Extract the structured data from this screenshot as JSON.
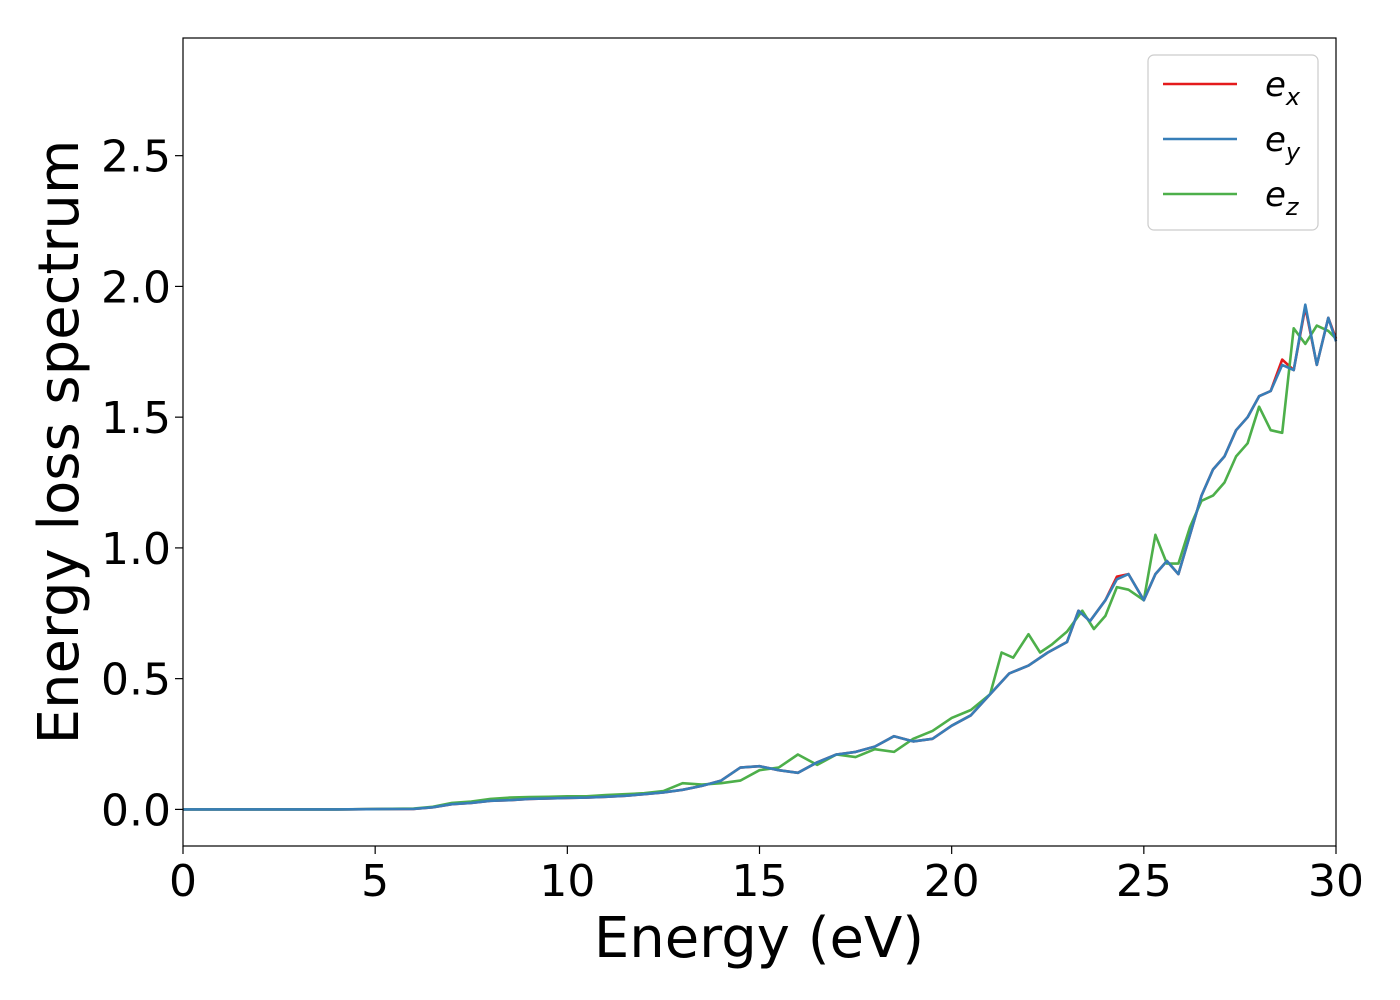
{
  "chart_data": {
    "type": "line",
    "xlabel": "Energy (eV)",
    "ylabel": "Energy loss spectrum",
    "xlim": [
      0,
      30
    ],
    "ylim": [
      -0.14,
      2.95
    ],
    "xticks": [
      0,
      5,
      10,
      15,
      20,
      25,
      30
    ],
    "xtick_labels": [
      "0",
      "5",
      "10",
      "15",
      "20",
      "25",
      "30"
    ],
    "yticks": [
      0.0,
      0.5,
      1.0,
      1.5,
      2.0,
      2.5
    ],
    "ytick_labels": [
      "0.0",
      "0.5",
      "1.0",
      "1.5",
      "2.0",
      "2.5"
    ],
    "grid": false,
    "legend_position": "top-right",
    "series": [
      {
        "name": "e",
        "subscript": "x",
        "color": "#e41a1c",
        "x": [
          0,
          2,
          4,
          6,
          6.5,
          7,
          7.5,
          8,
          8.5,
          9,
          9.5,
          10,
          10.5,
          11,
          11.5,
          12,
          12.5,
          13,
          13.5,
          14,
          14.5,
          15,
          15.5,
          16,
          16.5,
          17,
          17.5,
          18,
          18.5,
          19,
          19.5,
          20,
          20.5,
          21,
          21.5,
          22,
          22.5,
          23,
          23.3,
          23.6,
          24,
          24.3,
          24.6,
          25,
          25.3,
          25.6,
          25.9,
          26.2,
          26.5,
          26.8,
          27.1,
          27.4,
          27.7,
          28,
          28.3,
          28.6,
          28.9,
          29.2,
          29.5,
          29.8,
          30
        ],
        "y": [
          0,
          0,
          0,
          0.002,
          0.008,
          0.02,
          0.025,
          0.033,
          0.035,
          0.04,
          0.042,
          0.044,
          0.045,
          0.048,
          0.052,
          0.058,
          0.065,
          0.075,
          0.09,
          0.11,
          0.16,
          0.165,
          0.15,
          0.14,
          0.18,
          0.21,
          0.22,
          0.24,
          0.28,
          0.26,
          0.27,
          0.32,
          0.36,
          0.44,
          0.52,
          0.55,
          0.6,
          0.64,
          0.76,
          0.72,
          0.8,
          0.89,
          0.9,
          0.8,
          0.9,
          0.95,
          0.9,
          1.05,
          1.2,
          1.3,
          1.35,
          1.45,
          1.5,
          1.58,
          1.6,
          1.72,
          1.68,
          1.92,
          1.7,
          1.88,
          1.8
        ]
      },
      {
        "name": "e",
        "subscript": "y",
        "color": "#377eb8",
        "x": [
          0,
          2,
          4,
          6,
          6.5,
          7,
          7.5,
          8,
          8.5,
          9,
          9.5,
          10,
          10.5,
          11,
          11.5,
          12,
          12.5,
          13,
          13.5,
          14,
          14.5,
          15,
          15.5,
          16,
          16.5,
          17,
          17.5,
          18,
          18.5,
          19,
          19.5,
          20,
          20.5,
          21,
          21.5,
          22,
          22.5,
          23,
          23.3,
          23.6,
          24,
          24.3,
          24.6,
          25,
          25.3,
          25.6,
          25.9,
          26.2,
          26.5,
          26.8,
          27.1,
          27.4,
          27.7,
          28,
          28.3,
          28.6,
          28.9,
          29.2,
          29.5,
          29.8,
          30
        ],
        "y": [
          0,
          0,
          0,
          0.002,
          0.008,
          0.02,
          0.025,
          0.033,
          0.035,
          0.04,
          0.042,
          0.044,
          0.045,
          0.048,
          0.052,
          0.058,
          0.065,
          0.075,
          0.09,
          0.11,
          0.16,
          0.165,
          0.15,
          0.14,
          0.18,
          0.21,
          0.22,
          0.24,
          0.28,
          0.26,
          0.27,
          0.32,
          0.36,
          0.44,
          0.52,
          0.55,
          0.6,
          0.64,
          0.76,
          0.72,
          0.8,
          0.88,
          0.9,
          0.8,
          0.9,
          0.95,
          0.9,
          1.05,
          1.2,
          1.3,
          1.35,
          1.45,
          1.5,
          1.58,
          1.6,
          1.7,
          1.68,
          1.93,
          1.7,
          1.88,
          1.79
        ]
      },
      {
        "name": "e",
        "subscript": "z",
        "color": "#4daf4a",
        "x": [
          0,
          2,
          4,
          6,
          6.5,
          7,
          7.5,
          8,
          8.5,
          9,
          9.5,
          10,
          10.5,
          11,
          11.5,
          12,
          12.5,
          13,
          13.5,
          14,
          14.5,
          15,
          15.5,
          16,
          16.5,
          17,
          17.5,
          18,
          18.5,
          19,
          19.5,
          20,
          20.5,
          21,
          21.3,
          21.6,
          22,
          22.3,
          22.6,
          23,
          23.4,
          23.7,
          24,
          24.3,
          24.6,
          25,
          25.3,
          25.6,
          25.9,
          26.2,
          26.5,
          26.8,
          27.1,
          27.4,
          27.7,
          28,
          28.3,
          28.6,
          28.9,
          29.2,
          29.5,
          29.8,
          30
        ],
        "y": [
          0,
          0,
          0,
          0.003,
          0.01,
          0.025,
          0.03,
          0.04,
          0.045,
          0.047,
          0.048,
          0.05,
          0.05,
          0.055,
          0.058,
          0.062,
          0.07,
          0.1,
          0.095,
          0.1,
          0.11,
          0.15,
          0.16,
          0.21,
          0.17,
          0.21,
          0.2,
          0.23,
          0.22,
          0.27,
          0.3,
          0.35,
          0.38,
          0.44,
          0.6,
          0.58,
          0.67,
          0.6,
          0.63,
          0.68,
          0.76,
          0.69,
          0.74,
          0.85,
          0.84,
          0.8,
          1.05,
          0.94,
          0.94,
          1.08,
          1.18,
          1.2,
          1.25,
          1.35,
          1.4,
          1.54,
          1.45,
          1.44,
          1.84,
          1.78,
          1.85,
          1.83,
          1.8
        ]
      }
    ]
  }
}
